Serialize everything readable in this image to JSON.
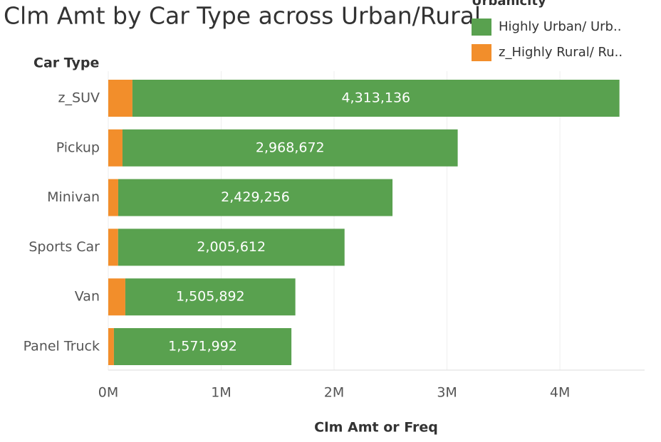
{
  "chart_data": {
    "type": "stacked-bar-horizontal",
    "title": "Clm Amt by Car Type across Urban/Rural",
    "y_axis_title": "Car Type",
    "x_axis_title": "Clm Amt or Freq",
    "legend_title": "Urbanicity",
    "categories": [
      "z_SUV",
      "Pickup",
      "Minivan",
      "Sports Car",
      "Van",
      "Panel Truck"
    ],
    "series": [
      {
        "name": "Highly Urban/ Urb..",
        "color": "#59a14f",
        "values": [
          4313136,
          2968672,
          2429256,
          2005612,
          1505892,
          1571992
        ],
        "value_labels": [
          "4,313,136",
          "2,968,672",
          "2,429,256",
          "2,005,612",
          "1,505,892",
          "1,571,992"
        ]
      },
      {
        "name": "z_Highly Rural/ Ru..",
        "color": "#f28e2b",
        "values": [
          214000,
          126000,
          88000,
          87000,
          151000,
          50000
        ]
      }
    ],
    "xlim": [
      0,
      4750000
    ],
    "xticks": [
      {
        "value": 0,
        "label": "0M"
      },
      {
        "value": 1000000,
        "label": "1M"
      },
      {
        "value": 2000000,
        "label": "2M"
      },
      {
        "value": 3000000,
        "label": "3M"
      },
      {
        "value": 4000000,
        "label": "4M"
      }
    ],
    "grid": true
  }
}
